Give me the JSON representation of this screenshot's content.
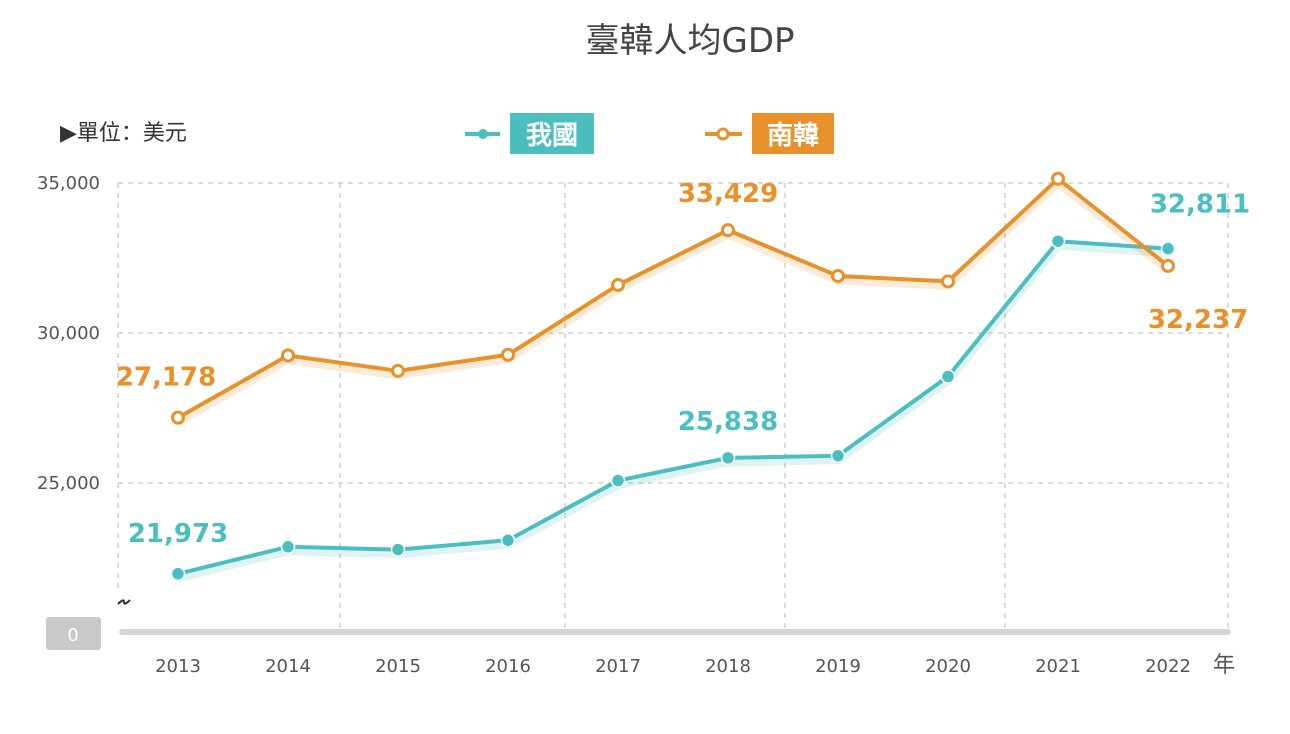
{
  "chart_data": {
    "type": "line",
    "title": "臺韓人均GDP",
    "unit_label": "▶單位：美元",
    "x_suffix": "年",
    "x": [
      "2013",
      "2014",
      "2015",
      "2016",
      "2017",
      "2018",
      "2019",
      "2020",
      "2021",
      "2022"
    ],
    "y_ticks": [
      "35,000",
      "30,000",
      "25,000"
    ],
    "y_zero_label": "0",
    "ylim": [
      0,
      35000
    ],
    "axis_break": true,
    "grid": true,
    "legend_position": "top-center",
    "series": [
      {
        "name": "我國",
        "color": "#4bbfbf",
        "values": [
          21973,
          22874,
          22780,
          23091,
          25080,
          25838,
          25908,
          28549,
          33059,
          32811
        ],
        "labels": [
          {
            "index": 0,
            "text": "21,973"
          },
          {
            "index": 5,
            "text": "25,838"
          },
          {
            "index": 9,
            "text": "32,811"
          }
        ]
      },
      {
        "name": "南韓",
        "color": "#e8912a",
        "values": [
          27178,
          29250,
          28737,
          29274,
          31601,
          33429,
          31902,
          31721,
          35142,
          32237
        ],
        "labels": [
          {
            "index": 0,
            "text": "27,178"
          },
          {
            "index": 5,
            "text": "33,429"
          },
          {
            "index": 9,
            "text": "32,237"
          }
        ]
      }
    ]
  }
}
